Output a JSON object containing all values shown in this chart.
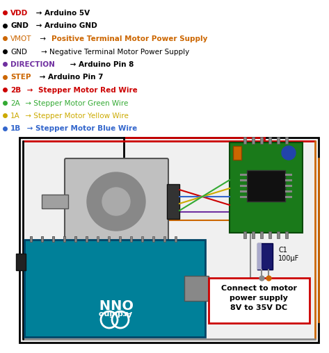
{
  "background_color": "#ffffff",
  "bullet_items": [
    {
      "bullet_color": "#cc0000",
      "segments": [
        {
          "text": "VDD",
          "color": "#cc0000",
          "bold": true
        },
        {
          "text": " → Arduino 5V",
          "color": "#000000",
          "bold": true
        }
      ]
    },
    {
      "bullet_color": "#000000",
      "segments": [
        {
          "text": "GND",
          "color": "#000000",
          "bold": true
        },
        {
          "text": " → Arduino GND",
          "color": "#000000",
          "bold": true
        }
      ]
    },
    {
      "bullet_color": "#cc6600",
      "segments": [
        {
          "text": "VMOT",
          "color": "#cc6600",
          "bold": false
        },
        {
          "text": " → ",
          "color": "#000000",
          "bold": false
        },
        {
          "text": "Positive Terminal Motor Power Supply",
          "color": "#cc6600",
          "bold": true
        }
      ]
    },
    {
      "bullet_color": "#000000",
      "segments": [
        {
          "text": "GND",
          "color": "#000000",
          "bold": false
        },
        {
          "text": "    → Negative Terminal Motor Power Supply",
          "color": "#000000",
          "bold": false
        }
      ]
    },
    {
      "bullet_color": "#7030a0",
      "segments": [
        {
          "text": "DIRECTION",
          "color": "#7030a0",
          "bold": true
        },
        {
          "text": " → Arduino Pin 8",
          "color": "#000000",
          "bold": true
        }
      ]
    },
    {
      "bullet_color": "#cc6600",
      "segments": [
        {
          "text": "STEP",
          "color": "#cc6600",
          "bold": true
        },
        {
          "text": " → Arduino Pin 7",
          "color": "#000000",
          "bold": true
        }
      ]
    },
    {
      "bullet_color": "#cc0000",
      "segments": [
        {
          "text": "2B",
          "color": "#cc0000",
          "bold": true
        },
        {
          "text": " → ",
          "color": "#cc0000",
          "bold": true
        },
        {
          "text": "Stepper Motor Red Wire",
          "color": "#cc0000",
          "bold": true
        }
      ]
    },
    {
      "bullet_color": "#33aa33",
      "segments": [
        {
          "text": "2A",
          "color": "#33aa33",
          "bold": false
        },
        {
          "text": " → Stepper Motor Green Wire",
          "color": "#33aa33",
          "bold": false
        }
      ]
    },
    {
      "bullet_color": "#ccaa00",
      "segments": [
        {
          "text": "1A",
          "color": "#ccaa00",
          "bold": false
        },
        {
          "text": " → Stepper Motor Yellow Wire",
          "color": "#ccaa00",
          "bold": false
        }
      ]
    },
    {
      "bullet_color": "#3366cc",
      "segments": [
        {
          "text": "1B",
          "color": "#3366cc",
          "bold": true
        },
        {
          "text": " → Stepper Motor Blue Wire",
          "color": "#3366cc",
          "bold": true
        }
      ]
    }
  ],
  "diagram_box_color": "#000000",
  "diagram_bg": "#ffffff",
  "wire_colors": {
    "red": "#cc0000",
    "black": "#000000",
    "orange": "#cc6600",
    "purple": "#7030a0",
    "blue": "#3366cc",
    "green": "#33aa33",
    "yellow": "#ccaa00",
    "gray": "#888888"
  },
  "capacitor_label": "C1\n100μF",
  "box_label": "Connect to motor\npower supply\n8V to 35V DC",
  "box_border_color": "#cc0000"
}
